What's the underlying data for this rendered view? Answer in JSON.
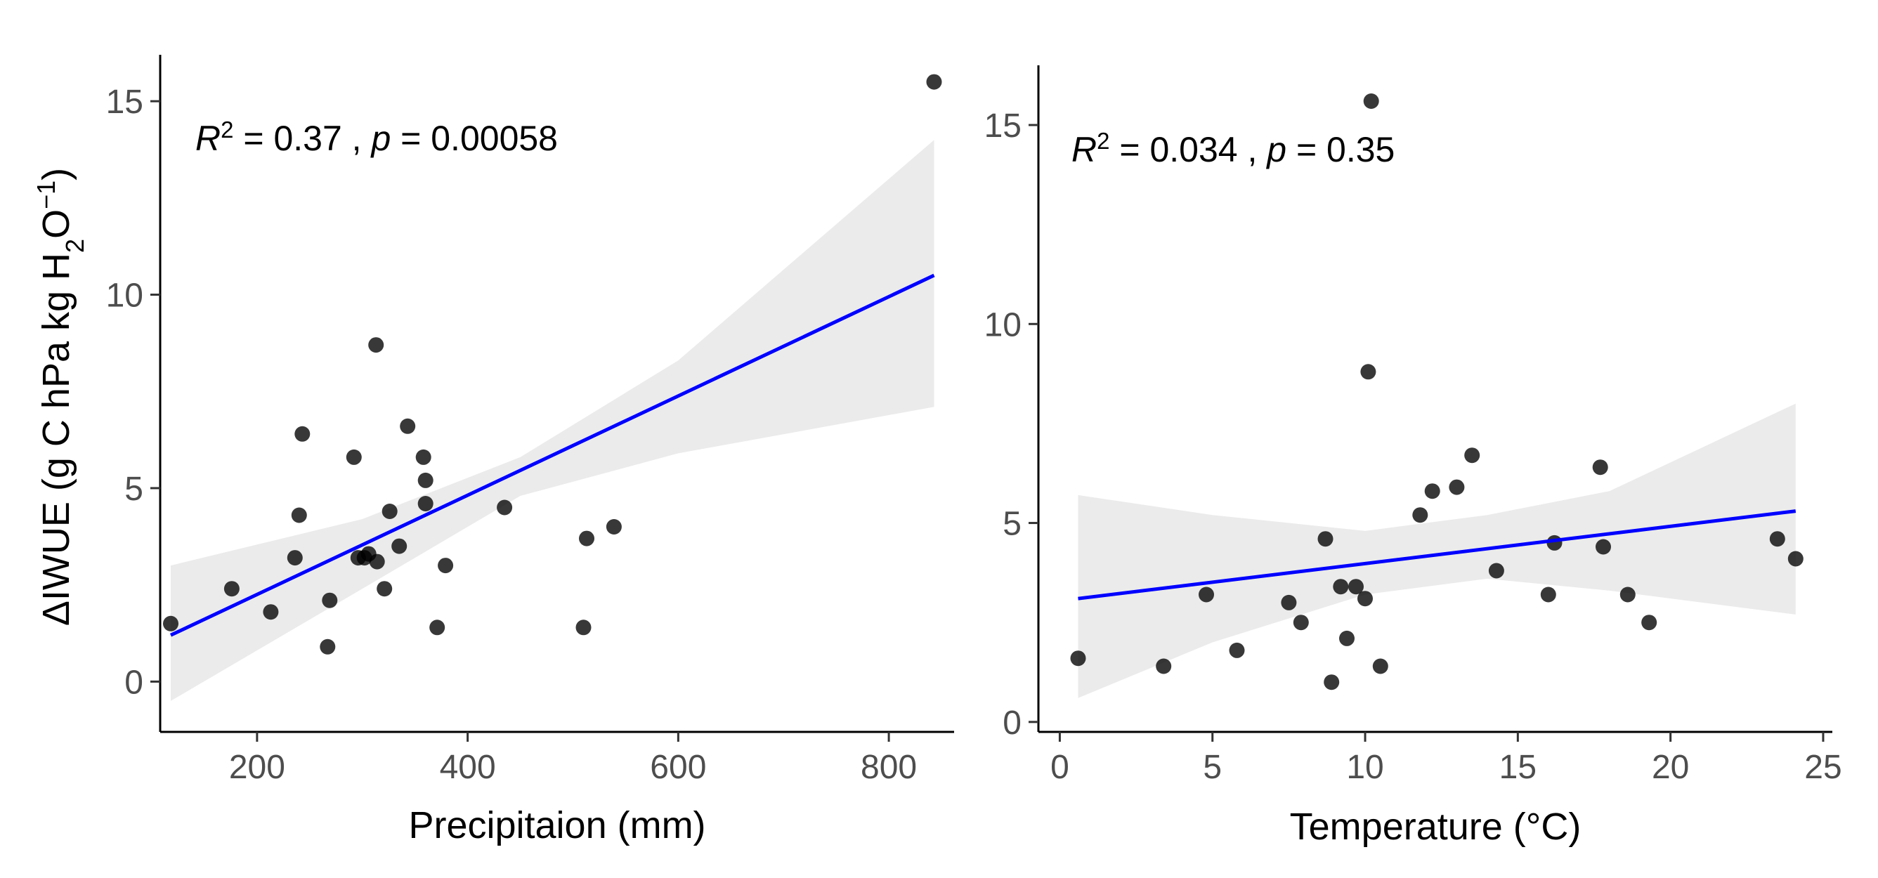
{
  "chart_data": [
    {
      "type": "scatter",
      "title": "",
      "xlabel": "Precipitaion (mm)",
      "ylabel": {
        "prefix": "ΔIWUE (g C hPa kg H",
        "sub": "2",
        "mid": "O",
        "sup": "−1",
        "suffix": ")"
      },
      "annotation": {
        "r_symbol": "R",
        "r_exp": "2",
        "r_value": " = 0.37 , ",
        "p_symbol": "p",
        "p_value": " = 0.00058"
      },
      "xlim": [
        108,
        862
      ],
      "ylim": [
        -1.3,
        16.2
      ],
      "xticks": [
        200,
        400,
        600,
        800
      ],
      "yticks": [
        0,
        5,
        10,
        15
      ],
      "grid": false,
      "legend": "none",
      "points": [
        {
          "x": 118,
          "y": 1.5
        },
        {
          "x": 176,
          "y": 2.4
        },
        {
          "x": 213,
          "y": 1.8
        },
        {
          "x": 236,
          "y": 3.2
        },
        {
          "x": 240,
          "y": 4.3
        },
        {
          "x": 243,
          "y": 6.4
        },
        {
          "x": 269,
          "y": 2.1
        },
        {
          "x": 267,
          "y": 0.9
        },
        {
          "x": 292,
          "y": 5.8
        },
        {
          "x": 296,
          "y": 3.2
        },
        {
          "x": 302,
          "y": 3.2
        },
        {
          "x": 306,
          "y": 3.3
        },
        {
          "x": 313,
          "y": 8.7
        },
        {
          "x": 314,
          "y": 3.1
        },
        {
          "x": 321,
          "y": 2.4
        },
        {
          "x": 326,
          "y": 4.4
        },
        {
          "x": 335,
          "y": 3.5
        },
        {
          "x": 343,
          "y": 6.6
        },
        {
          "x": 358,
          "y": 5.8
        },
        {
          "x": 360,
          "y": 5.2
        },
        {
          "x": 360,
          "y": 4.6
        },
        {
          "x": 371,
          "y": 1.4
        },
        {
          "x": 379,
          "y": 3.0
        },
        {
          "x": 435,
          "y": 4.5
        },
        {
          "x": 510,
          "y": 1.4
        },
        {
          "x": 513,
          "y": 3.7
        },
        {
          "x": 539,
          "y": 4.0
        },
        {
          "x": 843,
          "y": 15.5
        }
      ],
      "fit": {
        "x": [
          118,
          843
        ],
        "y": [
          1.2,
          10.5
        ],
        "ci_x": [
          118,
          300,
          450,
          600,
          843
        ],
        "ci_lower": [
          -0.5,
          2.4,
          4.8,
          5.9,
          7.1
        ],
        "ci_upper": [
          3.0,
          4.2,
          5.8,
          8.3,
          14.0
        ]
      },
      "colors": {
        "point": "#000000",
        "fit": "#0000ff",
        "ci": "#ebebeb"
      }
    },
    {
      "type": "scatter",
      "title": "",
      "xlabel": "Temperature (°C)",
      "annotation": {
        "r_symbol": "R",
        "r_exp": "2",
        "r_value": " = 0.034 , ",
        "p_symbol": "p",
        "p_value": " = 0.35"
      },
      "xlim": [
        -0.7,
        25.3
      ],
      "ylim": [
        -0.25,
        16.5
      ],
      "xticks": [
        0,
        5,
        10,
        15,
        20,
        25
      ],
      "yticks": [
        0,
        5,
        10,
        15
      ],
      "grid": false,
      "legend": "none",
      "points": [
        {
          "x": 0.6,
          "y": 1.6
        },
        {
          "x": 3.4,
          "y": 1.4
        },
        {
          "x": 4.8,
          "y": 3.2
        },
        {
          "x": 5.8,
          "y": 1.8
        },
        {
          "x": 7.5,
          "y": 3.0
        },
        {
          "x": 7.9,
          "y": 2.5
        },
        {
          "x": 8.7,
          "y": 4.6
        },
        {
          "x": 8.9,
          "y": 1.0
        },
        {
          "x": 9.2,
          "y": 3.4
        },
        {
          "x": 9.4,
          "y": 2.1
        },
        {
          "x": 9.7,
          "y": 3.4
        },
        {
          "x": 10.0,
          "y": 3.1
        },
        {
          "x": 10.1,
          "y": 8.8
        },
        {
          "x": 10.2,
          "y": 15.6
        },
        {
          "x": 10.5,
          "y": 1.4
        },
        {
          "x": 11.8,
          "y": 5.2
        },
        {
          "x": 12.2,
          "y": 5.8
        },
        {
          "x": 13.0,
          "y": 5.9
        },
        {
          "x": 13.5,
          "y": 6.7
        },
        {
          "x": 14.3,
          "y": 3.8
        },
        {
          "x": 16.0,
          "y": 3.2
        },
        {
          "x": 16.2,
          "y": 4.5
        },
        {
          "x": 17.7,
          "y": 6.4
        },
        {
          "x": 17.8,
          "y": 4.4
        },
        {
          "x": 18.6,
          "y": 3.2
        },
        {
          "x": 19.3,
          "y": 2.5
        },
        {
          "x": 23.5,
          "y": 4.6
        },
        {
          "x": 24.1,
          "y": 4.1
        }
      ],
      "fit": {
        "x": [
          0.6,
          24.1
        ],
        "y": [
          3.1,
          5.3
        ],
        "ci_x": [
          0.6,
          5,
          10,
          14,
          18,
          24.1
        ],
        "ci_lower": [
          0.6,
          2.0,
          3.2,
          3.6,
          3.3,
          2.7
        ],
        "ci_upper": [
          5.7,
          5.2,
          4.8,
          5.2,
          5.8,
          8.0
        ]
      },
      "colors": {
        "point": "#000000",
        "fit": "#0000ff",
        "ci": "#ebebeb"
      }
    }
  ]
}
